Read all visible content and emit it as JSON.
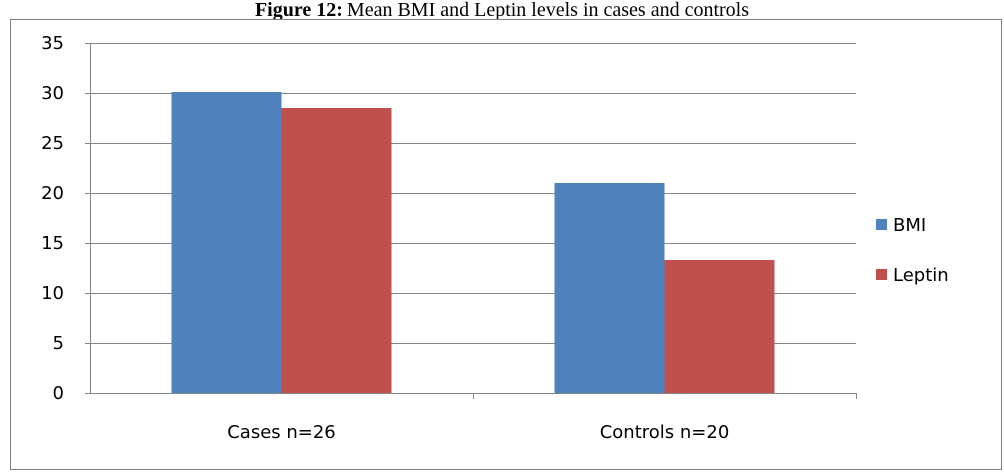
{
  "caption": {
    "label": "Figure 12:",
    "text": "Mean BMI and Leptin levels in cases and controls"
  },
  "chart_data": {
    "type": "bar",
    "categories": [
      "Cases n=26",
      "Controls n=20"
    ],
    "series": [
      {
        "name": "BMI",
        "values": [
          30.1,
          21.0
        ],
        "color": "#4F81BD"
      },
      {
        "name": "Leptin",
        "values": [
          28.5,
          13.3
        ],
        "color": "#C0504D"
      }
    ],
    "ylim": [
      0,
      35
    ],
    "yticks": [
      "0",
      "5",
      "10",
      "15",
      "20",
      "25",
      "30",
      "35"
    ],
    "grid": true,
    "legend": "right"
  }
}
